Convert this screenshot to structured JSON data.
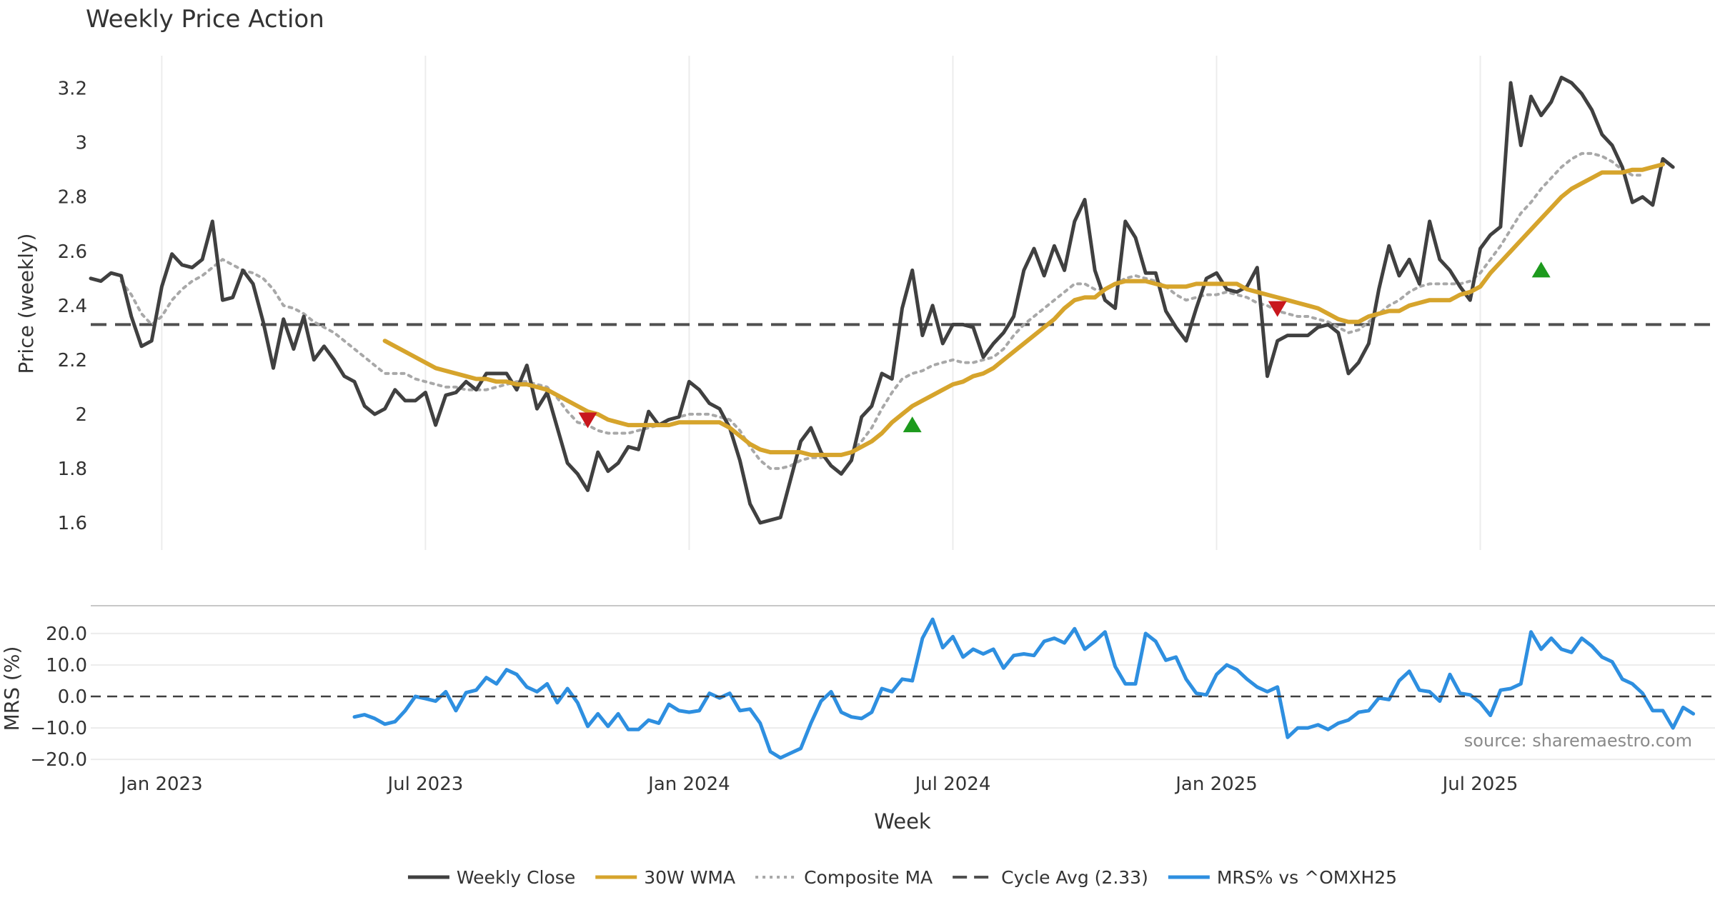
{
  "chart_data": [
    {
      "type": "line",
      "title": "Weekly Price Action",
      "ylabel": "Price (weekly)",
      "ylim": [
        1.5,
        3.32
      ],
      "yticks": [
        "1.6",
        "1.8",
        "2",
        "2.2",
        "2.4",
        "2.6",
        "2.8",
        "3",
        "3.2"
      ],
      "grid": "vertical",
      "series": [
        {
          "name": "Weekly Close",
          "color": "#404040",
          "start_index": 0,
          "values": [
            2.5,
            2.49,
            2.52,
            2.51,
            2.36,
            2.25,
            2.27,
            2.47,
            2.59,
            2.55,
            2.54,
            2.57,
            2.71,
            2.42,
            2.43,
            2.53,
            2.48,
            2.34,
            2.17,
            2.35,
            2.24,
            2.36,
            2.2,
            2.25,
            2.2,
            2.14,
            2.12,
            2.03,
            2.0,
            2.02,
            2.09,
            2.05,
            2.05,
            2.08,
            1.96,
            2.07,
            2.08,
            2.12,
            2.09,
            2.15,
            2.15,
            2.15,
            2.09,
            2.18,
            2.02,
            2.08,
            1.95,
            1.82,
            1.78,
            1.72,
            1.86,
            1.79,
            1.82,
            1.88,
            1.87,
            2.01,
            1.96,
            1.98,
            1.99,
            2.12,
            2.09,
            2.04,
            2.02,
            1.95,
            1.83,
            1.67,
            1.6,
            1.61,
            1.62,
            1.76,
            1.9,
            1.95,
            1.86,
            1.81,
            1.78,
            1.83,
            1.99,
            2.03,
            2.15,
            2.13,
            2.39,
            2.53,
            2.29,
            2.4,
            2.26,
            2.33,
            2.33,
            2.32,
            2.21,
            2.26,
            2.3,
            2.36,
            2.53,
            2.61,
            2.51,
            2.62,
            2.53,
            2.71,
            2.79,
            2.53,
            2.42,
            2.39,
            2.71,
            2.65,
            2.52,
            2.52,
            2.38,
            2.32,
            2.27,
            2.39,
            2.5,
            2.52,
            2.46,
            2.45,
            2.47,
            2.54,
            2.14,
            2.27,
            2.29,
            2.29,
            2.29,
            2.32,
            2.33,
            2.3,
            2.15,
            2.19,
            2.26,
            2.46,
            2.62,
            2.51,
            2.57,
            2.48,
            2.71,
            2.57,
            2.53,
            2.47,
            2.42,
            2.61,
            2.66,
            2.69,
            3.22,
            2.99,
            3.17,
            3.1,
            3.15,
            3.24,
            3.22,
            3.18,
            3.12,
            3.03,
            2.99,
            2.91,
            2.78,
            2.8,
            2.77,
            2.94,
            2.91
          ]
        },
        {
          "name": "30W WMA",
          "color": "#d6a42c",
          "start_index": 29,
          "values": [
            2.27,
            2.25,
            2.23,
            2.21,
            2.19,
            2.17,
            2.16,
            2.15,
            2.14,
            2.13,
            2.13,
            2.12,
            2.12,
            2.11,
            2.11,
            2.1,
            2.09,
            2.07,
            2.05,
            2.03,
            2.01,
            2.0,
            1.98,
            1.97,
            1.96,
            1.96,
            1.96,
            1.96,
            1.96,
            1.97,
            1.97,
            1.97,
            1.97,
            1.97,
            1.95,
            1.92,
            1.89,
            1.87,
            1.86,
            1.86,
            1.86,
            1.86,
            1.85,
            1.85,
            1.85,
            1.85,
            1.86,
            1.88,
            1.9,
            1.93,
            1.97,
            2.0,
            2.03,
            2.05,
            2.07,
            2.09,
            2.11,
            2.12,
            2.14,
            2.15,
            2.17,
            2.2,
            2.23,
            2.26,
            2.29,
            2.32,
            2.35,
            2.39,
            2.42,
            2.43,
            2.43,
            2.46,
            2.48,
            2.49,
            2.49,
            2.49,
            2.48,
            2.47,
            2.47,
            2.47,
            2.48,
            2.48,
            2.48,
            2.48,
            2.48,
            2.46,
            2.45,
            2.44,
            2.43,
            2.42,
            2.41,
            2.4,
            2.39,
            2.37,
            2.35,
            2.34,
            2.34,
            2.36,
            2.37,
            2.38,
            2.38,
            2.4,
            2.41,
            2.42,
            2.42,
            2.42,
            2.44,
            2.45,
            2.47,
            2.52,
            2.56,
            2.6,
            2.64,
            2.68,
            2.72,
            2.76,
            2.8,
            2.83,
            2.85,
            2.87,
            2.89,
            2.89,
            2.89,
            2.9,
            2.9,
            2.91,
            2.92
          ]
        },
        {
          "name": "Composite MA",
          "color": "#a8a8a8",
          "start_index": 3,
          "values": [
            2.49,
            2.44,
            2.37,
            2.33,
            2.36,
            2.42,
            2.46,
            2.49,
            2.51,
            2.54,
            2.57,
            2.55,
            2.53,
            2.52,
            2.5,
            2.46,
            2.4,
            2.39,
            2.37,
            2.34,
            2.32,
            2.3,
            2.27,
            2.24,
            2.21,
            2.18,
            2.15,
            2.15,
            2.15,
            2.13,
            2.12,
            2.11,
            2.1,
            2.1,
            2.09,
            2.09,
            2.09,
            2.1,
            2.11,
            2.12,
            2.12,
            2.11,
            2.1,
            2.06,
            2.01,
            1.97,
            1.96,
            1.94,
            1.93,
            1.93,
            1.93,
            1.94,
            1.95,
            1.96,
            1.98,
            1.99,
            2.0,
            2.0,
            2.0,
            1.99,
            1.98,
            1.94,
            1.88,
            1.83,
            1.8,
            1.8,
            1.81,
            1.83,
            1.84,
            1.84,
            1.85,
            1.85,
            1.86,
            1.9,
            1.95,
            2.02,
            2.08,
            2.13,
            2.15,
            2.16,
            2.18,
            2.19,
            2.2,
            2.19,
            2.19,
            2.2,
            2.21,
            2.24,
            2.29,
            2.33,
            2.36,
            2.39,
            2.42,
            2.45,
            2.48,
            2.48,
            2.46,
            2.46,
            2.48,
            2.5,
            2.51,
            2.5,
            2.49,
            2.47,
            2.44,
            2.42,
            2.43,
            2.44,
            2.44,
            2.45,
            2.44,
            2.43,
            2.41,
            2.4,
            2.38,
            2.37,
            2.36,
            2.36,
            2.35,
            2.34,
            2.32,
            2.3,
            2.31,
            2.34,
            2.37,
            2.4,
            2.42,
            2.45,
            2.47,
            2.48,
            2.48,
            2.48,
            2.48,
            2.49,
            2.52,
            2.57,
            2.62,
            2.68,
            2.74,
            2.78,
            2.83,
            2.87,
            2.91,
            2.94,
            2.96,
            2.96,
            2.95,
            2.93,
            2.9,
            2.88,
            2.88
          ]
        },
        {
          "name": "Cycle Avg (2.33)",
          "color": "#505050",
          "constant": 2.33
        }
      ],
      "signals": [
        {
          "type": "sell",
          "index": 49,
          "y": 1.98,
          "color": "#c8171d"
        },
        {
          "type": "buy",
          "index": 81,
          "y": 1.96,
          "color": "#1d9a1d"
        },
        {
          "type": "sell",
          "index": 117,
          "y": 2.39,
          "color": "#c8171d"
        },
        {
          "type": "buy",
          "index": 143,
          "y": 2.53,
          "color": "#1d9a1d"
        }
      ]
    },
    {
      "type": "line",
      "ylabel": "MRS (%)",
      "ylim": [
        -22,
        27
      ],
      "yticks": [
        "−20.0",
        "−10.0",
        "0.0",
        "10.0",
        "20.0"
      ],
      "grid": "horizontal",
      "xlabel": "Week",
      "series": [
        {
          "name": "MRS% vs ^OMXH25",
          "color": "#2e8fe0",
          "start_index": 26,
          "values": [
            -6.5,
            -5.8,
            -7.0,
            -8.8,
            -8.0,
            -4.5,
            0,
            -0.7,
            -1.5,
            1.5,
            -4.5,
            1.2,
            2.0,
            6.0,
            4.0,
            8.5,
            7.0,
            3.0,
            1.5,
            4.0,
            -2.0,
            2.5,
            -2.0,
            -9.5,
            -5.5,
            -9.5,
            -5.5,
            -10.5,
            -10.5,
            -7.5,
            -8.5,
            -2.5,
            -4.5,
            -5.0,
            -4.5,
            1.0,
            -0.5,
            1.0,
            -4.5,
            -4.0,
            -8.5,
            -17.5,
            -19.5,
            -18.0,
            -16.5,
            -8.5,
            -1.5,
            1.5,
            -5.0,
            -6.5,
            -7.0,
            -5.0,
            2.5,
            1.5,
            5.5,
            5.0,
            18.5,
            24.5,
            15.5,
            19.0,
            12.5,
            15.0,
            13.5,
            15.0,
            9.0,
            13.0,
            13.5,
            13.0,
            17.5,
            18.5,
            17.0,
            21.5,
            15.0,
            17.5,
            20.5,
            9.5,
            4.0,
            4.0,
            20.0,
            17.5,
            11.5,
            12.5,
            5.5,
            1.0,
            0.5,
            7.0,
            10.0,
            8.5,
            5.5,
            3.0,
            1.5,
            3.0,
            -13.0,
            -10.0,
            -10.0,
            -9.0,
            -10.5,
            -8.5,
            -7.5,
            -5.0,
            -4.5,
            -0.5,
            -1.0,
            5.0,
            8.0,
            2.0,
            1.5,
            -1.5,
            7.0,
            1.0,
            0.5,
            -2.0,
            -6.0,
            2.0,
            2.5,
            4.0,
            20.5,
            15.0,
            18.5,
            15.0,
            14.0,
            18.5,
            16.0,
            12.5,
            11.0,
            5.5,
            4.0,
            1.0,
            -4.5,
            -4.5,
            -10.0,
            -3.5,
            -5.5
          ]
        },
        {
          "name": "zero-line",
          "constant": 0
        }
      ],
      "source": "source: sharemaestro.com"
    }
  ],
  "x_axis": {
    "weeks": 161,
    "tick_labels": [
      {
        "label": "Jan 2023",
        "index": 7
      },
      {
        "label": "Jul 2023",
        "index": 33
      },
      {
        "label": "Jan 2024",
        "index": 59
      },
      {
        "label": "Jul 2024",
        "index": 85
      },
      {
        "label": "Jan 2025",
        "index": 111
      },
      {
        "label": "Jul 2025",
        "index": 137
      }
    ]
  },
  "legend": {
    "placement": "bottom-center",
    "items": [
      {
        "label": "Weekly Close",
        "style": "solid",
        "color": "#404040"
      },
      {
        "label": "30W WMA",
        "style": "solid",
        "color": "#d6a42c"
      },
      {
        "label": "Composite MA",
        "style": "dotted",
        "color": "#a8a8a8"
      },
      {
        "label": "Cycle Avg (2.33)",
        "style": "dashed",
        "color": "#505050"
      },
      {
        "label": "MRS% vs ^OMXH25",
        "style": "solid",
        "color": "#2e8fe0"
      }
    ]
  }
}
